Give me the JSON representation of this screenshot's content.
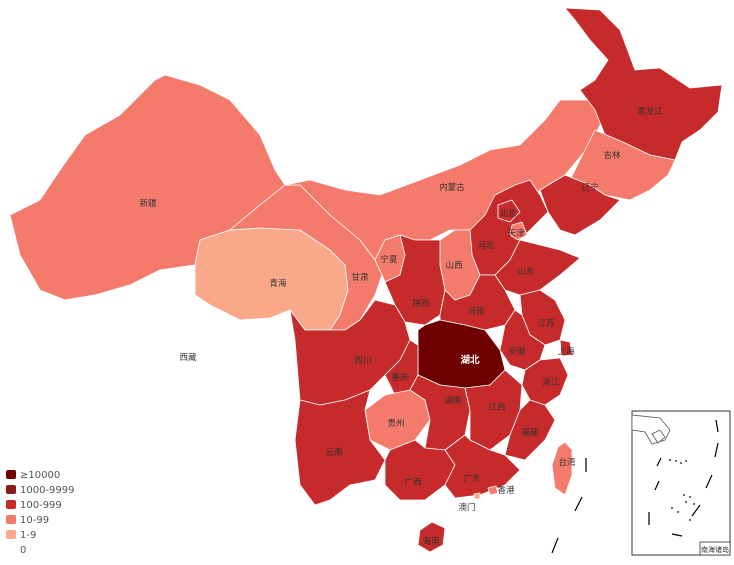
{
  "legend": [
    {
      "label": "≥10000",
      "color": "#6e0000"
    },
    {
      "label": "1000-9999",
      "color": "#8b1a1a"
    },
    {
      "label": "100-999",
      "color": "#c62a2a"
    },
    {
      "label": "10-99",
      "color": "#f47a6b"
    },
    {
      "label": "1-9",
      "color": "#f9a98a"
    },
    {
      "label": "0",
      "color": "#ffffff"
    }
  ],
  "provinces": [
    {
      "id": "xinjiang",
      "name": "新疆",
      "level": "10-99"
    },
    {
      "id": "xizang",
      "name": "西藏",
      "level": "0"
    },
    {
      "id": "qinghai",
      "name": "青海",
      "level": "1-9"
    },
    {
      "id": "gansu",
      "name": "甘肃",
      "level": "10-99"
    },
    {
      "id": "neimenggu",
      "name": "内蒙古",
      "level": "10-99"
    },
    {
      "id": "heilongjiang",
      "name": "黑龙江",
      "level": "100-999"
    },
    {
      "id": "jilin",
      "name": "吉林",
      "level": "10-99"
    },
    {
      "id": "liaoning",
      "name": "辽宁",
      "level": "100-999"
    },
    {
      "id": "beijing",
      "name": "北京",
      "level": "100-999"
    },
    {
      "id": "tianjin",
      "name": "天津",
      "level": "10-99"
    },
    {
      "id": "hebei",
      "name": "河北",
      "level": "100-999"
    },
    {
      "id": "shanxi",
      "name": "山西",
      "level": "10-99"
    },
    {
      "id": "ningxia",
      "name": "宁夏",
      "level": "10-99"
    },
    {
      "id": "shaanxi",
      "name": "陕西",
      "level": "100-999"
    },
    {
      "id": "shandong",
      "name": "山东",
      "level": "100-999"
    },
    {
      "id": "henan",
      "name": "河南",
      "level": "100-999"
    },
    {
      "id": "jiangsu",
      "name": "江苏",
      "level": "100-999"
    },
    {
      "id": "anhui",
      "name": "安徽",
      "level": "100-999"
    },
    {
      "id": "shanghai",
      "name": "上海",
      "level": "100-999"
    },
    {
      "id": "hubei",
      "name": "湖北",
      "level": "≥10000"
    },
    {
      "id": "zhejiang",
      "name": "浙江",
      "level": "100-999"
    },
    {
      "id": "sichuan",
      "name": "四川",
      "level": "100-999"
    },
    {
      "id": "chongqing",
      "name": "重庆",
      "level": "100-999"
    },
    {
      "id": "guizhou",
      "name": "贵州",
      "level": "10-99"
    },
    {
      "id": "hunan",
      "name": "湖南",
      "level": "100-999"
    },
    {
      "id": "jiangxi",
      "name": "江西",
      "level": "100-999"
    },
    {
      "id": "fujian",
      "name": "福建",
      "level": "100-999"
    },
    {
      "id": "yunnan",
      "name": "云南",
      "level": "100-999"
    },
    {
      "id": "guangxi",
      "name": "广西",
      "level": "100-999"
    },
    {
      "id": "guangdong",
      "name": "广东",
      "level": "100-999"
    },
    {
      "id": "taiwan",
      "name": "台湾",
      "level": "10-99"
    },
    {
      "id": "xianggang",
      "name": "香港",
      "level": "10-99"
    },
    {
      "id": "aomen",
      "name": "澳门",
      "level": "1-9"
    },
    {
      "id": "hainan",
      "name": "海南",
      "level": "100-999"
    }
  ],
  "inset": {
    "label": "南海诸岛"
  }
}
